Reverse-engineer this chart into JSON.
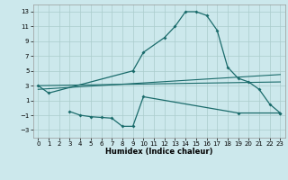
{
  "bg_color": "#cce8ec",
  "grid_color": "#aacccc",
  "line_color": "#1a6b6b",
  "xlabel": "Humidex (Indice chaleur)",
  "xlim": [
    -0.5,
    23.5
  ],
  "ylim": [
    -4,
    14
  ],
  "yticks": [
    -3,
    -1,
    1,
    3,
    5,
    7,
    9,
    11,
    13
  ],
  "xticks": [
    0,
    1,
    2,
    3,
    4,
    5,
    6,
    7,
    8,
    9,
    10,
    11,
    12,
    13,
    14,
    15,
    16,
    17,
    18,
    19,
    20,
    21,
    22,
    23
  ],
  "curve1_x": [
    0,
    1,
    9,
    10,
    12,
    13,
    14,
    15,
    16,
    17,
    18,
    19,
    20,
    21,
    22,
    23
  ],
  "curve1_y": [
    3,
    2,
    5,
    7.5,
    9.5,
    11,
    13,
    13,
    12.5,
    10.5,
    5.5,
    4,
    3.5,
    2.5,
    0.5,
    -0.7
  ],
  "line1_x": [
    0,
    23
  ],
  "line1_y": [
    2.5,
    4.5
  ],
  "line2_x": [
    0,
    23
  ],
  "line2_y": [
    3.0,
    3.5
  ],
  "curve2_x": [
    3,
    4,
    5,
    6,
    7,
    8,
    9,
    10,
    19,
    23
  ],
  "curve2_y": [
    -0.5,
    -1.0,
    -1.2,
    -1.3,
    -1.4,
    -2.5,
    -2.5,
    1.5,
    -0.7,
    -0.7
  ],
  "title_fontsize": 7,
  "xlabel_fontsize": 6,
  "tick_fontsize": 5
}
